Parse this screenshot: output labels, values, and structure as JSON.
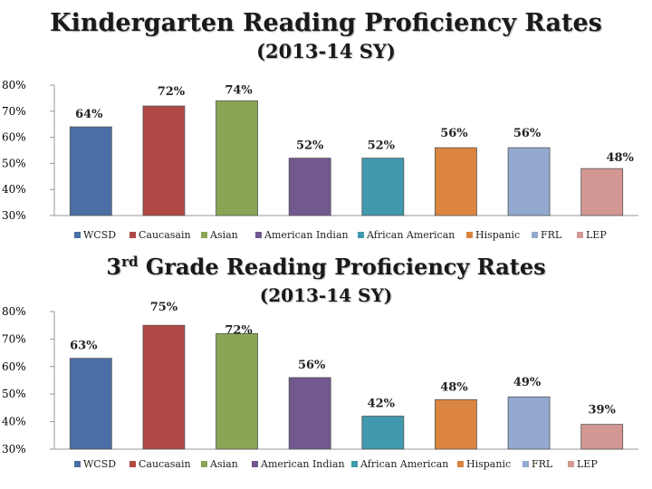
{
  "chart_data": [
    {
      "type": "bar",
      "title": "Kindergarten Reading Proficiency Rates",
      "subtitle": "(2013-14 SY)",
      "ylim": [
        30,
        80
      ],
      "yticks": [
        "80%",
        "70%",
        "60%",
        "50%",
        "40%",
        "30%"
      ],
      "categories": [
        "WCSD",
        "Caucasain",
        "Asian",
        "American Indian",
        "African American",
        "Hispanic",
        "FRL",
        "LEP"
      ],
      "values": [
        64,
        72,
        74,
        52,
        52,
        56,
        56,
        48
      ],
      "value_labels": [
        "64%",
        "72%",
        "74%",
        "52%",
        "52%",
        "56%",
        "56%",
        "48%"
      ],
      "legend_position": "bottom"
    },
    {
      "type": "bar",
      "title_main": "3",
      "title_sup": "rd",
      "title_rest": " Grade Reading Proficiency Rates",
      "subtitle": "(2013-14 SY)",
      "ylim": [
        30,
        80
      ],
      "yticks": [
        "80%",
        "70%",
        "60%",
        "50%",
        "40%",
        "30%"
      ],
      "categories": [
        "WCSD",
        "Caucasain",
        "Asian",
        "American Indian",
        "African American",
        "Hispanic",
        "FRL",
        "LEP"
      ],
      "values": [
        63,
        75,
        72,
        56,
        42,
        48,
        49,
        39
      ],
      "value_labels": [
        "63%",
        "75%",
        "72%",
        "56%",
        "42%",
        "48%",
        "49%",
        "39%"
      ],
      "legend_position": "bottom"
    }
  ],
  "colors": [
    "#4a6fa5",
    "#b04946",
    "#8aa655",
    "#71588f",
    "#4099ad",
    "#db8540",
    "#93a9cf",
    "#d39794"
  ]
}
